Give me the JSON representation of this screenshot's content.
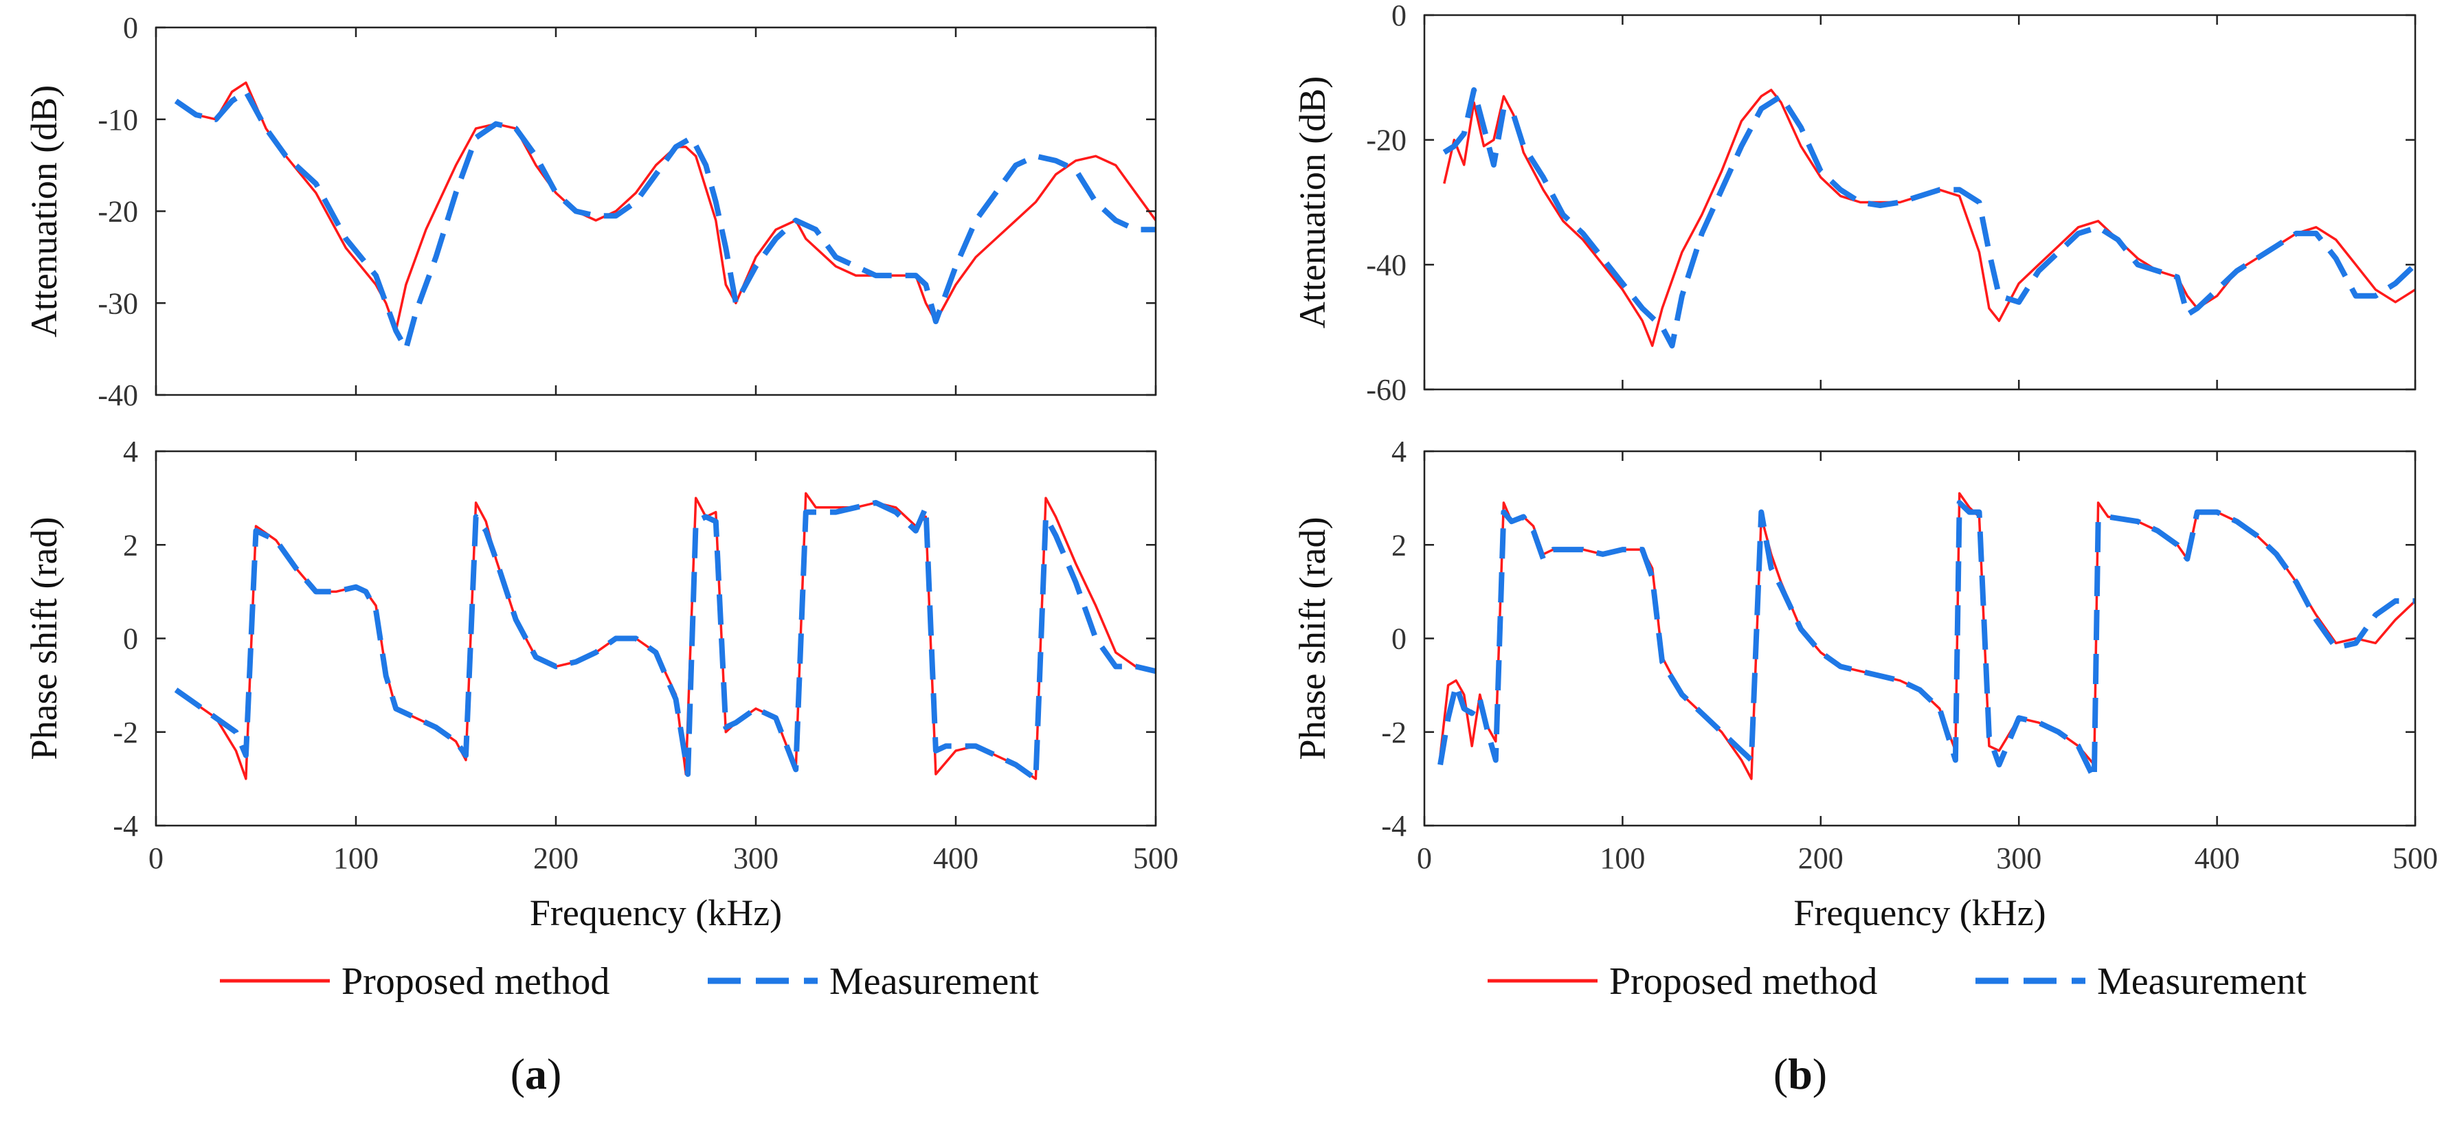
{
  "colors": {
    "proposed": "#ff1a1a",
    "measurement": "#1f78e6",
    "axis": "#222222"
  },
  "legend": {
    "proposed": "Proposed method",
    "measurement": "Measurement"
  },
  "panels": [
    {
      "id": "a",
      "open": "(",
      "letter": "a",
      "close": ")"
    },
    {
      "id": "b",
      "open": "(",
      "letter": "b",
      "close": ")"
    }
  ],
  "chart_data": [
    {
      "type": "line",
      "panel": "a",
      "title": "",
      "xlabel": "",
      "ylabel": "Attenuation (dB)",
      "xlim": [
        0,
        500
      ],
      "ylim": [
        -40,
        0
      ],
      "xticks": [
        0,
        100,
        200,
        300,
        400,
        500
      ],
      "yticks": [
        -40,
        -30,
        -20,
        -10,
        0
      ],
      "show_xticklabels": false,
      "series": [
        {
          "name": "Proposed method",
          "style": "solid",
          "x": [
            10,
            20,
            30,
            38,
            45,
            55,
            65,
            80,
            95,
            110,
            115,
            120,
            125,
            135,
            150,
            160,
            170,
            180,
            190,
            200,
            210,
            220,
            230,
            240,
            250,
            260,
            265,
            270,
            280,
            285,
            290,
            300,
            310,
            320,
            325,
            330,
            340,
            350,
            360,
            370,
            380,
            385,
            390,
            400,
            410,
            420,
            430,
            440,
            450,
            460,
            470,
            480,
            490,
            500
          ],
          "y": [
            -8,
            -9.5,
            -10,
            -7,
            -6,
            -11,
            -14,
            -18,
            -24,
            -28,
            -30,
            -33,
            -28,
            -22,
            -15,
            -11,
            -10.5,
            -11,
            -15,
            -18,
            -20,
            -21,
            -20,
            -18,
            -15,
            -13,
            -13,
            -14,
            -21,
            -28,
            -30,
            -25,
            -22,
            -21,
            -23,
            -24,
            -26,
            -27,
            -27,
            -27,
            -27,
            -30,
            -32,
            -28,
            -25,
            -23,
            -21,
            -19,
            -16,
            -14.5,
            -14,
            -15,
            -18,
            -21
          ]
        },
        {
          "name": "Measurement",
          "style": "dashed",
          "x": [
            10,
            20,
            30,
            38,
            45,
            55,
            65,
            80,
            95,
            110,
            115,
            120,
            125,
            130,
            140,
            150,
            160,
            170,
            180,
            190,
            200,
            210,
            220,
            230,
            240,
            250,
            260,
            268,
            275,
            280,
            285,
            290,
            300,
            310,
            320,
            330,
            340,
            350,
            360,
            370,
            380,
            385,
            390,
            400,
            410,
            420,
            430,
            440,
            450,
            460,
            470,
            480,
            490,
            500
          ],
          "y": [
            -8,
            -9.5,
            -10,
            -8,
            -7,
            -11,
            -14,
            -17,
            -23,
            -27,
            -30,
            -33,
            -35,
            -31,
            -25,
            -18,
            -12,
            -10.5,
            -11,
            -14,
            -18,
            -20,
            -20.5,
            -20.5,
            -19,
            -16,
            -13,
            -12,
            -15,
            -19,
            -24,
            -30,
            -26,
            -23,
            -21,
            -22,
            -25,
            -26,
            -27,
            -27,
            -27,
            -28,
            -32,
            -26,
            -21,
            -18,
            -15,
            -14,
            -14.5,
            -15.5,
            -19,
            -21,
            -22,
            -22
          ]
        }
      ]
    },
    {
      "type": "line",
      "panel": "a",
      "title": "",
      "xlabel": "Frequency (kHz)",
      "ylabel": "Phase shift (rad)",
      "xlim": [
        0,
        500
      ],
      "ylim": [
        -4,
        4
      ],
      "xticks": [
        0,
        100,
        200,
        300,
        400,
        500
      ],
      "yticks": [
        -4,
        -2,
        0,
        2,
        4
      ],
      "show_xticklabels": true,
      "series": [
        {
          "name": "Proposed method",
          "style": "solid",
          "x": [
            10,
            20,
            30,
            40,
            45,
            50,
            60,
            70,
            80,
            90,
            100,
            105,
            110,
            115,
            120,
            130,
            140,
            150,
            155,
            160,
            165,
            170,
            180,
            190,
            200,
            210,
            220,
            230,
            240,
            250,
            260,
            265,
            270,
            275,
            280,
            285,
            290,
            300,
            310,
            320,
            325,
            330,
            340,
            350,
            360,
            370,
            380,
            385,
            390,
            400,
            410,
            420,
            430,
            440,
            445,
            450,
            460,
            470,
            480,
            490,
            500
          ],
          "y": [
            -1.1,
            -1.4,
            -1.7,
            -2.4,
            -3,
            2.4,
            2.1,
            1.5,
            1,
            1,
            1.1,
            1,
            0.7,
            -0.7,
            -1.5,
            -1.7,
            -1.9,
            -2.2,
            -2.6,
            2.9,
            2.5,
            1.7,
            0.4,
            -0.4,
            -0.6,
            -0.5,
            -0.3,
            0,
            0,
            -0.3,
            -1.2,
            -2.9,
            3,
            2.6,
            2.7,
            -2,
            -1.8,
            -1.5,
            -1.7,
            -2.8,
            3.1,
            2.8,
            2.8,
            2.8,
            2.9,
            2.8,
            2.4,
            2.6,
            -2.9,
            -2.4,
            -2.3,
            -2.5,
            -2.7,
            -3,
            3,
            2.6,
            1.6,
            0.7,
            -0.3,
            -0.6,
            -0.7
          ]
        },
        {
          "name": "Measurement",
          "style": "dashed",
          "x": [
            10,
            20,
            30,
            40,
            45,
            50,
            60,
            70,
            80,
            90,
            100,
            105,
            110,
            115,
            120,
            130,
            140,
            150,
            155,
            160,
            165,
            170,
            180,
            190,
            200,
            210,
            220,
            230,
            240,
            250,
            260,
            266,
            270,
            275,
            280,
            285,
            290,
            300,
            310,
            320,
            325,
            330,
            340,
            350,
            360,
            370,
            380,
            385,
            390,
            395,
            410,
            420,
            430,
            440,
            445,
            450,
            460,
            470,
            480,
            490,
            500
          ],
          "y": [
            -1.1,
            -1.4,
            -1.7,
            -2,
            -2.5,
            2.3,
            2.1,
            1.5,
            1,
            1,
            1.1,
            1,
            0.6,
            -0.8,
            -1.5,
            -1.7,
            -1.9,
            -2.2,
            -2.5,
            2.6,
            2.3,
            1.7,
            0.4,
            -0.4,
            -0.6,
            -0.5,
            -0.3,
            0,
            0,
            -0.3,
            -1.3,
            -2.9,
            2.5,
            2.6,
            2.5,
            -1.9,
            -1.8,
            -1.5,
            -1.7,
            -2.8,
            2.7,
            2.7,
            2.7,
            2.8,
            2.9,
            2.7,
            2.3,
            2.8,
            -2.4,
            -2.3,
            -2.3,
            -2.5,
            -2.7,
            -3,
            2.6,
            2.2,
            1.2,
            0,
            -0.6,
            -0.6,
            -0.7
          ]
        }
      ]
    },
    {
      "type": "line",
      "panel": "b",
      "title": "",
      "xlabel": "",
      "ylabel": "Attenuation (dB)",
      "xlim": [
        0,
        500
      ],
      "ylim": [
        -60,
        0
      ],
      "xticks": [
        0,
        100,
        200,
        300,
        400,
        500
      ],
      "yticks": [
        -60,
        -40,
        -20,
        0
      ],
      "show_xticklabels": false,
      "series": [
        {
          "name": "Proposed method",
          "style": "solid",
          "x": [
            10,
            15,
            20,
            25,
            30,
            35,
            40,
            45,
            50,
            60,
            70,
            80,
            90,
            100,
            110,
            115,
            120,
            130,
            140,
            150,
            160,
            170,
            175,
            180,
            190,
            200,
            210,
            220,
            230,
            240,
            250,
            260,
            270,
            280,
            285,
            290,
            300,
            310,
            320,
            330,
            340,
            350,
            360,
            370,
            380,
            385,
            390,
            400,
            410,
            420,
            430,
            440,
            450,
            460,
            470,
            480,
            490,
            495,
            500
          ],
          "y": [
            -27,
            -20,
            -24,
            -14,
            -21,
            -20,
            -13,
            -16,
            -22,
            -28,
            -33,
            -36,
            -40,
            -44,
            -49,
            -53,
            -47,
            -38,
            -32,
            -25,
            -17,
            -13,
            -12,
            -14,
            -21,
            -26,
            -29,
            -30,
            -30,
            -30,
            -29,
            -28,
            -29,
            -38,
            -47,
            -49,
            -43,
            -40,
            -37,
            -34,
            -33,
            -36,
            -39,
            -41,
            -42,
            -45,
            -47,
            -45,
            -41,
            -39,
            -37,
            -35,
            -34,
            -36,
            -40,
            -44,
            -46,
            -45,
            -44
          ]
        },
        {
          "name": "Measurement",
          "style": "dashed",
          "x": [
            10,
            15,
            20,
            25,
            30,
            35,
            40,
            45,
            50,
            60,
            70,
            80,
            90,
            100,
            110,
            120,
            125,
            130,
            140,
            150,
            160,
            170,
            180,
            190,
            200,
            210,
            220,
            230,
            240,
            250,
            260,
            270,
            280,
            285,
            290,
            300,
            310,
            320,
            330,
            340,
            350,
            360,
            370,
            380,
            385,
            390,
            400,
            410,
            420,
            430,
            440,
            450,
            460,
            470,
            480,
            490,
            500
          ],
          "y": [
            -22,
            -21,
            -19,
            -12,
            -18,
            -24,
            -15,
            -16,
            -21,
            -26,
            -32,
            -35,
            -39,
            -43,
            -47,
            -50,
            -53,
            -45,
            -35,
            -28,
            -21,
            -15,
            -13,
            -18,
            -25,
            -28,
            -30,
            -30.5,
            -30,
            -29,
            -28,
            -28,
            -30,
            -38,
            -45,
            -46,
            -41,
            -38,
            -35,
            -34,
            -36,
            -40,
            -41,
            -42,
            -48,
            -47,
            -44,
            -41,
            -39,
            -37,
            -35,
            -35,
            -39,
            -45,
            -45,
            -43,
            -40
          ]
        }
      ]
    },
    {
      "type": "line",
      "panel": "b",
      "title": "",
      "xlabel": "Frequency (kHz)",
      "ylabel": "Phase shift (rad)",
      "xlim": [
        0,
        500
      ],
      "ylim": [
        -4,
        4
      ],
      "xticks": [
        0,
        100,
        200,
        300,
        400,
        500
      ],
      "yticks": [
        -4,
        -2,
        0,
        2,
        4
      ],
      "show_xticklabels": true,
      "series": [
        {
          "name": "Proposed method",
          "style": "solid",
          "x": [
            8,
            12,
            16,
            20,
            24,
            28,
            32,
            36,
            40,
            44,
            50,
            55,
            60,
            65,
            70,
            80,
            90,
            100,
            110,
            115,
            120,
            130,
            140,
            150,
            160,
            165,
            170,
            175,
            180,
            190,
            200,
            210,
            220,
            230,
            240,
            250,
            260,
            268,
            270,
            275,
            280,
            285,
            290,
            300,
            310,
            320,
            330,
            338,
            340,
            345,
            360,
            370,
            380,
            385,
            390,
            400,
            410,
            420,
            430,
            440,
            450,
            460,
            470,
            480,
            490,
            500
          ],
          "y": [
            -2.5,
            -1,
            -0.9,
            -1.2,
            -2.3,
            -1.2,
            -1.9,
            -2.2,
            2.9,
            2.5,
            2.6,
            2.4,
            1.8,
            1.9,
            1.9,
            1.9,
            1.8,
            1.9,
            1.9,
            1.5,
            -0.4,
            -1.2,
            -1.6,
            -2,
            -2.6,
            -3,
            2.6,
            1.8,
            1.2,
            0.2,
            -0.3,
            -0.6,
            -0.7,
            -0.8,
            -0.9,
            -1.1,
            -1.5,
            -2.4,
            3.1,
            2.8,
            2.6,
            -2.3,
            -2.4,
            -1.7,
            -1.8,
            -2,
            -2.3,
            -2.7,
            2.9,
            2.6,
            2.5,
            2.3,
            2,
            1.7,
            2.7,
            2.7,
            2.5,
            2.2,
            1.8,
            1.2,
            0.5,
            -0.1,
            0,
            -0.1,
            0.4,
            0.8
          ]
        },
        {
          "name": "Measurement",
          "style": "dashed",
          "x": [
            8,
            12,
            16,
            20,
            24,
            28,
            32,
            36,
            40,
            44,
            50,
            55,
            60,
            65,
            70,
            80,
            90,
            100,
            110,
            115,
            120,
            130,
            140,
            150,
            160,
            165,
            170,
            175,
            180,
            190,
            200,
            210,
            220,
            230,
            240,
            250,
            260,
            268,
            270,
            275,
            280,
            285,
            290,
            295,
            300,
            310,
            320,
            330,
            338,
            340,
            345,
            360,
            370,
            380,
            385,
            390,
            400,
            410,
            420,
            430,
            440,
            450,
            460,
            470,
            480,
            490,
            500
          ],
          "y": [
            -2.7,
            -1.7,
            -1,
            -1.5,
            -1.6,
            -1.3,
            -2,
            -2.6,
            2.7,
            2.5,
            2.6,
            2.3,
            1.7,
            1.9,
            1.9,
            1.9,
            1.8,
            1.9,
            1.9,
            1.3,
            -0.5,
            -1.2,
            -1.6,
            -2,
            -2.4,
            -2.6,
            2.7,
            1.5,
            1.1,
            0.2,
            -0.3,
            -0.6,
            -0.7,
            -0.8,
            -0.9,
            -1.1,
            -1.5,
            -2.6,
            2.9,
            2.7,
            2.7,
            -2.1,
            -2.7,
            -2.2,
            -1.7,
            -1.8,
            -2,
            -2.3,
            -3,
            2.5,
            2.6,
            2.5,
            2.3,
            2,
            1.7,
            2.7,
            2.7,
            2.5,
            2.2,
            1.8,
            1.2,
            0.4,
            -0.2,
            -0.1,
            0.5,
            0.8,
            0.8
          ]
        }
      ]
    }
  ]
}
